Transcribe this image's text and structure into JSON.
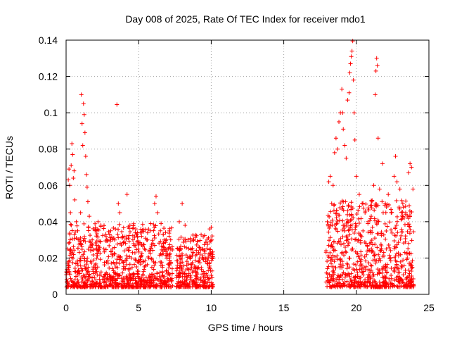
{
  "chart_data": {
    "type": "scatter",
    "title": "Day 008 of 2025, Rate Of TEC Index for receiver mdo1",
    "xlabel": "GPS time / hours",
    "ylabel": "ROTI / TECUs",
    "xlim": [
      0,
      25
    ],
    "ylim": [
      0,
      0.14
    ],
    "xticks": [
      "0",
      "5",
      "10",
      "15",
      "20",
      "25"
    ],
    "yticks": [
      "0",
      "0.02",
      "0.04",
      "0.06",
      "0.08",
      "0.1",
      "0.12",
      "0.14"
    ],
    "grid": true,
    "marker": "+",
    "color": "#ff0000",
    "series": [
      {
        "name": "ROTI",
        "points": [
          [
            0.05,
            0.012
          ],
          [
            0.1,
            0.025
          ],
          [
            0.15,
            0.063
          ],
          [
            0.2,
            0.069
          ],
          [
            0.25,
            0.06
          ],
          [
            0.3,
            0.045
          ],
          [
            0.35,
            0.071
          ],
          [
            0.4,
            0.083
          ],
          [
            0.45,
            0.077
          ],
          [
            0.5,
            0.064
          ],
          [
            0.55,
            0.068
          ],
          [
            0.6,
            0.052
          ],
          [
            0.7,
            0.04
          ],
          [
            0.8,
            0.035
          ],
          [
            0.9,
            0.03
          ],
          [
            1.0,
            0.045
          ],
          [
            1.05,
            0.11
          ],
          [
            1.1,
            0.094
          ],
          [
            1.15,
            0.082
          ],
          [
            1.2,
            0.105
          ],
          [
            1.25,
            0.099
          ],
          [
            1.3,
            0.089
          ],
          [
            1.35,
            0.076
          ],
          [
            1.4,
            0.066
          ],
          [
            1.45,
            0.059
          ],
          [
            1.5,
            0.051
          ],
          [
            1.6,
            0.043
          ],
          [
            1.8,
            0.03
          ],
          [
            2.0,
            0.035
          ],
          [
            2.2,
            0.04
          ],
          [
            2.4,
            0.038
          ],
          [
            2.6,
            0.025
          ],
          [
            2.8,
            0.03
          ],
          [
            3.0,
            0.033
          ],
          [
            3.2,
            0.025
          ],
          [
            3.4,
            0.036
          ],
          [
            3.5,
            0.1045
          ],
          [
            3.6,
            0.05
          ],
          [
            3.7,
            0.045
          ],
          [
            3.9,
            0.032
          ],
          [
            4.1,
            0.028
          ],
          [
            4.2,
            0.055
          ],
          [
            4.4,
            0.038
          ],
          [
            4.6,
            0.03
          ],
          [
            4.8,
            0.036
          ],
          [
            5.0,
            0.028
          ],
          [
            5.2,
            0.032
          ],
          [
            5.4,
            0.025
          ],
          [
            5.6,
            0.03
          ],
          [
            5.8,
            0.035
          ],
          [
            6.0,
            0.028
          ],
          [
            6.1,
            0.05
          ],
          [
            6.2,
            0.054
          ],
          [
            6.3,
            0.045
          ],
          [
            6.5,
            0.035
          ],
          [
            6.7,
            0.033
          ],
          [
            6.9,
            0.03
          ],
          [
            7.1,
            0.032
          ],
          [
            7.3,
            0.025
          ],
          [
            7.7,
            0.025
          ],
          [
            7.8,
            0.04
          ],
          [
            8.0,
            0.05
          ],
          [
            8.2,
            0.038
          ],
          [
            8.4,
            0.03
          ],
          [
            8.6,
            0.025
          ],
          [
            8.8,
            0.03
          ],
          [
            9.0,
            0.022
          ],
          [
            9.2,
            0.02
          ],
          [
            9.4,
            0.025
          ],
          [
            9.6,
            0.018
          ],
          [
            9.8,
            0.02
          ],
          [
            9.9,
            0.036
          ],
          [
            10.0,
            0.037
          ],
          [
            10.1,
            0.022
          ],
          [
            18.0,
            0.04
          ],
          [
            18.1,
            0.062
          ],
          [
            18.2,
            0.065
          ],
          [
            18.3,
            0.05
          ],
          [
            18.4,
            0.06
          ],
          [
            18.5,
            0.078
          ],
          [
            18.6,
            0.086
          ],
          [
            18.7,
            0.08
          ],
          [
            18.8,
            0.095
          ],
          [
            18.9,
            0.1
          ],
          [
            19.0,
            0.113
          ],
          [
            19.05,
            0.1
          ],
          [
            19.1,
            0.091
          ],
          [
            19.2,
            0.082
          ],
          [
            19.3,
            0.075
          ],
          [
            19.4,
            0.107
          ],
          [
            19.5,
            0.111
          ],
          [
            19.55,
            0.122
          ],
          [
            19.6,
            0.127
          ],
          [
            19.65,
            0.131
          ],
          [
            19.7,
            0.134
          ],
          [
            19.75,
            0.1395
          ],
          [
            19.8,
            0.118
          ],
          [
            19.85,
            0.1
          ],
          [
            19.9,
            0.085
          ],
          [
            20.0,
            0.065
          ],
          [
            20.2,
            0.055
          ],
          [
            20.4,
            0.05
          ],
          [
            20.6,
            0.045
          ],
          [
            20.8,
            0.04
          ],
          [
            21.0,
            0.035
          ],
          [
            21.2,
            0.06
          ],
          [
            21.3,
            0.11
          ],
          [
            21.35,
            0.123
          ],
          [
            21.4,
            0.13
          ],
          [
            21.45,
            0.126
          ],
          [
            21.5,
            0.086
          ],
          [
            21.6,
            0.058
          ],
          [
            21.8,
            0.072
          ],
          [
            22.0,
            0.05
          ],
          [
            22.2,
            0.055
          ],
          [
            22.4,
            0.045
          ],
          [
            22.6,
            0.065
          ],
          [
            22.7,
            0.076
          ],
          [
            22.8,
            0.062
          ],
          [
            23.0,
            0.058
          ],
          [
            23.2,
            0.05
          ],
          [
            23.4,
            0.045
          ],
          [
            23.6,
            0.067
          ],
          [
            23.7,
            0.072
          ],
          [
            23.8,
            0.07
          ],
          [
            23.9,
            0.058
          ]
        ]
      }
    ]
  }
}
